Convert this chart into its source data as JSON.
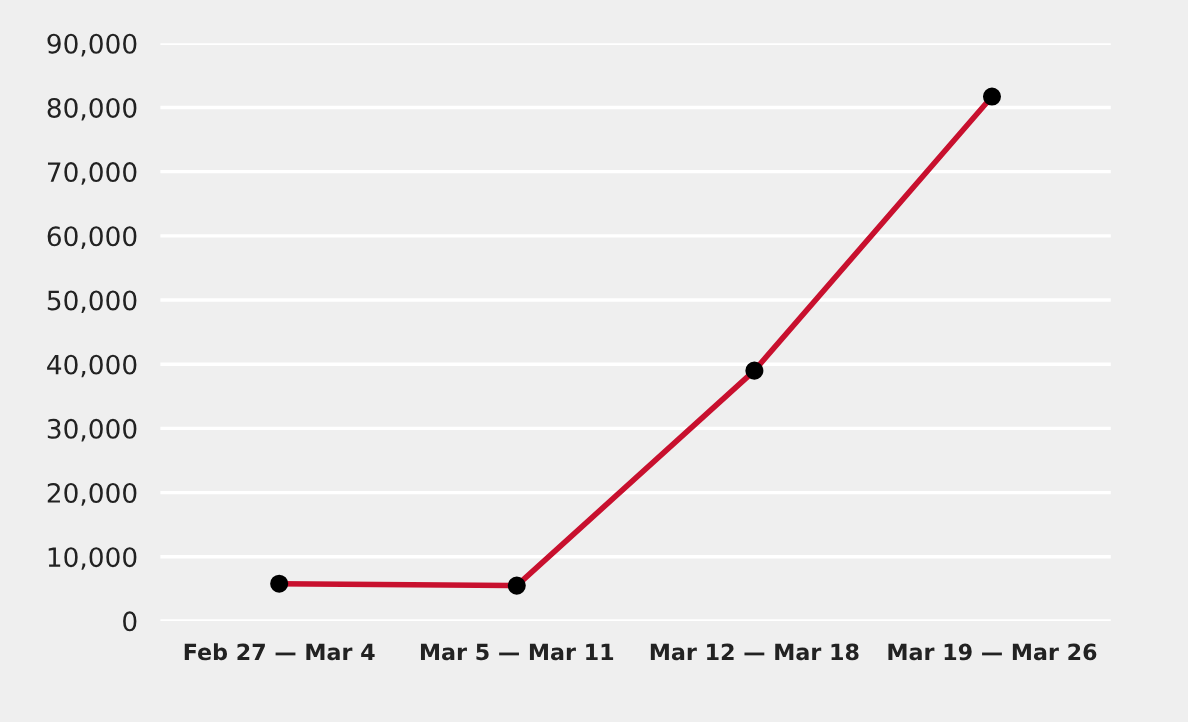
{
  "chart_data": {
    "type": "line",
    "categories": [
      "Feb 27 — Mar 4",
      "Mar 5 — Mar 11",
      "Mar 12 — Mar 18",
      "Mar 19 — Mar 26"
    ],
    "series": [
      {
        "color": "#c8102e",
        "values": [
          5800,
          5500,
          39000,
          81700
        ]
      }
    ],
    "ylim": [
      0,
      90000
    ],
    "yticks": [
      {
        "value": 0,
        "label": "0"
      },
      {
        "value": 10000,
        "label": "10,000"
      },
      {
        "value": 20000,
        "label": "20,000"
      },
      {
        "value": 30000,
        "label": "30,000"
      },
      {
        "value": 40000,
        "label": "40,000"
      },
      {
        "value": 50000,
        "label": "50,000"
      },
      {
        "value": 60000,
        "label": "60,000"
      },
      {
        "value": 70000,
        "label": "70,000"
      },
      {
        "value": 80000,
        "label": "80,000"
      },
      {
        "value": 90000,
        "label": "90,000"
      }
    ],
    "grid": "y",
    "marker": "circle",
    "line_style": "solid"
  }
}
